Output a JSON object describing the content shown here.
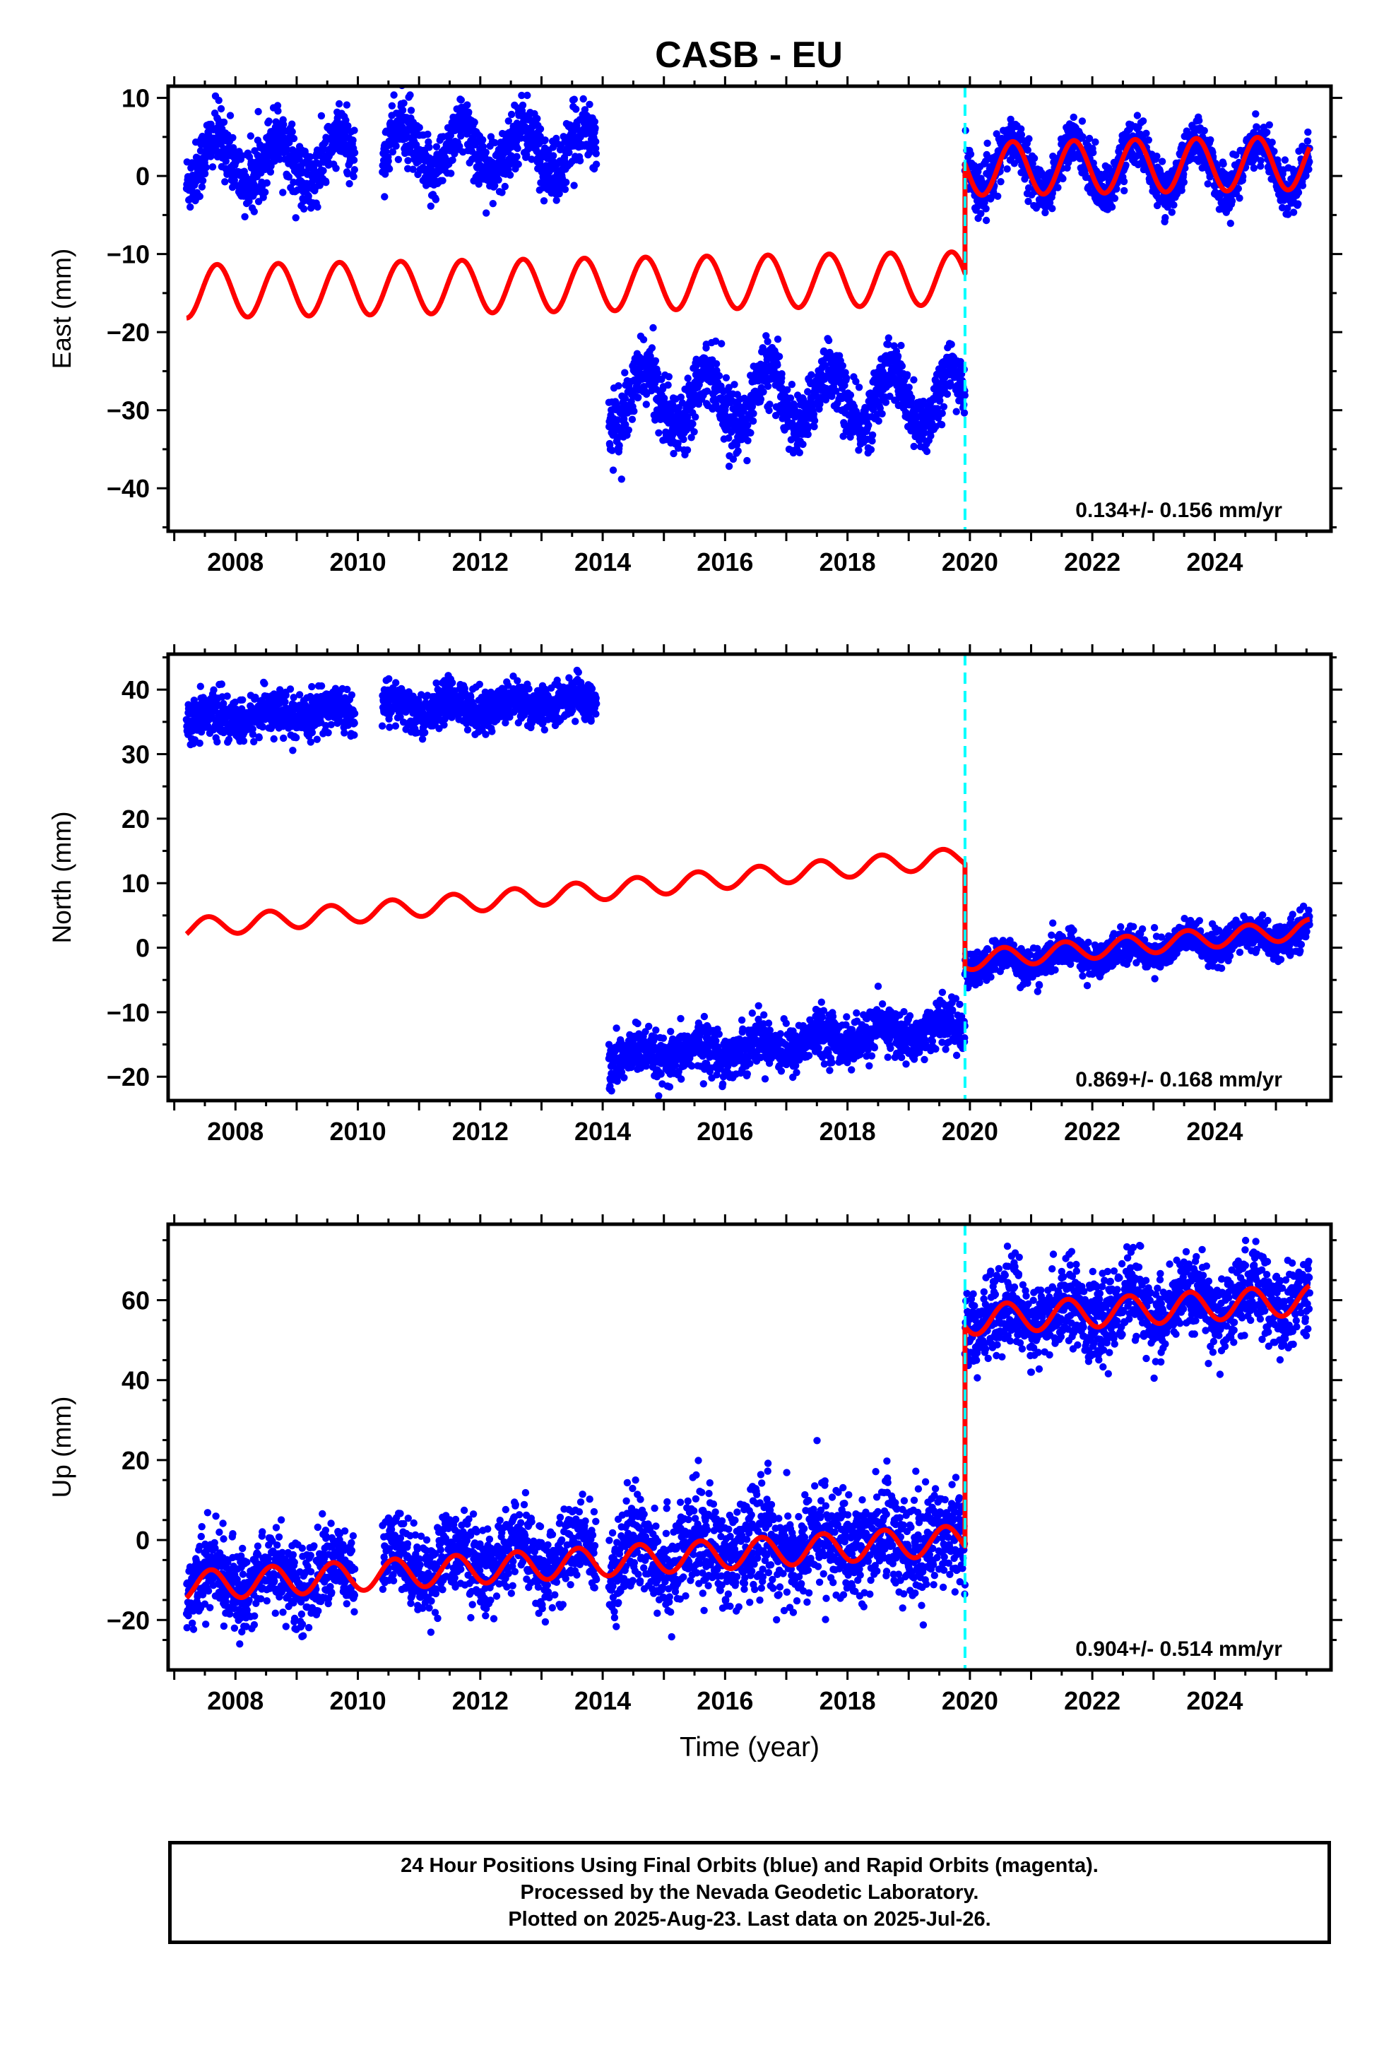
{
  "title": "CASB - EU",
  "colors": {
    "data": "#0000ff",
    "model": "#ff0000",
    "event_line": "#00ffff",
    "frame": "#000000"
  },
  "chart_data": [
    {
      "type": "scatter",
      "name": "east",
      "ylabel": "East (mm)",
      "xlabel": "",
      "xlim": [
        2006.9,
        2025.9
      ],
      "ylim": [
        -45.5,
        11.5
      ],
      "xticks": [
        "2008",
        "2010",
        "2012",
        "2014",
        "2016",
        "2018",
        "2020",
        "2022",
        "2024"
      ],
      "yticks": [
        "10",
        "0",
        "−10",
        "−20",
        "−30",
        "−40"
      ],
      "ytick_values": [
        10,
        0,
        -10,
        -20,
        -30,
        -40
      ],
      "annotation": "0.134+/- 0.156 mm/yr",
      "event_line_x": 2019.92,
      "data_segments": [
        {
          "x_range": [
            2007.2,
            2009.95
          ],
          "center": 2.0,
          "amplitude": 3.0,
          "noise": 2.0,
          "phase": 2007.45
        },
        {
          "x_range": [
            2010.4,
            2013.9
          ],
          "center": 3.3,
          "amplitude": 3.0,
          "noise": 2.0,
          "phase": 2007.45
        },
        {
          "x_range": [
            2014.1,
            2019.92
          ],
          "center": -28.5,
          "amplitude": 3.6,
          "noise": 2.0,
          "phase": 2007.45
        },
        {
          "x_range": [
            2019.92,
            2025.55
          ],
          "center": 1.3,
          "amplitude": 3.3,
          "noise": 1.5,
          "phase": 2007.45
        }
      ],
      "model_segments": [
        {
          "x_range": [
            2007.2,
            2019.92
          ],
          "start": -14.8,
          "slope": 0.134,
          "amplitude": 3.4,
          "phase": 2007.45
        },
        {
          "x_range": [
            2019.92,
            2025.55
          ],
          "start": 0.9,
          "slope": 0.134,
          "amplitude": 3.4,
          "phase": 2007.45
        }
      ]
    },
    {
      "type": "scatter",
      "name": "north",
      "ylabel": "North (mm)",
      "xlabel": "",
      "xlim": [
        2006.9,
        2025.9
      ],
      "ylim": [
        -23.7,
        45.5
      ],
      "xticks": [
        "2008",
        "2010",
        "2012",
        "2014",
        "2016",
        "2018",
        "2020",
        "2022",
        "2024"
      ],
      "yticks": [
        "40",
        "30",
        "20",
        "10",
        "0",
        "−10",
        "−20"
      ],
      "ytick_values": [
        40,
        30,
        20,
        10,
        0,
        -10,
        -20
      ],
      "annotation": "0.869+/- 0.168 mm/yr",
      "event_line_x": 2019.92,
      "data_segments": [
        {
          "x_range": [
            2007.2,
            2009.95
          ],
          "center": 35.3,
          "slope": 0.5,
          "amplitude": 1.0,
          "noise": 1.6,
          "phase": 2007.3
        },
        {
          "x_range": [
            2010.4,
            2013.9
          ],
          "center": 37.0,
          "slope": 0.3,
          "amplitude": 1.0,
          "noise": 1.6,
          "phase": 2007.3
        },
        {
          "x_range": [
            2014.1,
            2019.92
          ],
          "center": -17.5,
          "slope": 0.9,
          "amplitude": 1.2,
          "noise": 1.8,
          "phase": 2007.3
        },
        {
          "x_range": [
            2019.92,
            2025.55
          ],
          "center": -2.8,
          "slope": 0.9,
          "amplitude": 1.2,
          "noise": 1.3,
          "phase": 2007.3
        }
      ],
      "model_segments": [
        {
          "x_range": [
            2007.2,
            2019.92
          ],
          "start": 3.0,
          "slope": 0.869,
          "amplitude": 1.5,
          "phase": 2007.3
        },
        {
          "x_range": [
            2019.92,
            2025.55
          ],
          "start": -2.0,
          "slope": 0.869,
          "amplitude": 1.5,
          "phase": 2007.3
        }
      ]
    },
    {
      "type": "scatter",
      "name": "up",
      "ylabel": "Up (mm)",
      "xlabel": "Time (year)",
      "xlim": [
        2006.9,
        2025.9
      ],
      "ylim": [
        -32.5,
        79.0
      ],
      "xticks": [
        "2008",
        "2010",
        "2012",
        "2014",
        "2016",
        "2018",
        "2020",
        "2022",
        "2024"
      ],
      "yticks": [
        "60",
        "40",
        "20",
        "0",
        "−20"
      ],
      "ytick_values": [
        60,
        40,
        20,
        0,
        -20
      ],
      "annotation": "0.904+/- 0.514 mm/yr",
      "event_line_x": 2019.92,
      "data_segments": [
        {
          "x_range": [
            2007.2,
            2009.95
          ],
          "center": -10.5,
          "slope": 0.7,
          "amplitude": 3.5,
          "noise": 5.0,
          "phase": 2007.35
        },
        {
          "x_range": [
            2010.4,
            2013.9
          ],
          "center": -6.0,
          "slope": 0.7,
          "amplitude": 3.5,
          "noise": 5.0,
          "phase": 2007.35
        },
        {
          "x_range": [
            2014.1,
            2019.92
          ],
          "center": -4.0,
          "slope": 0.8,
          "amplitude": 3.5,
          "noise": 6.5,
          "phase": 2007.35
        },
        {
          "x_range": [
            2019.92,
            2025.55
          ],
          "center": 55.5,
          "slope": 0.9,
          "amplitude": 3.8,
          "noise": 5.0,
          "phase": 2007.35
        }
      ],
      "model_segments": [
        {
          "x_range": [
            2007.2,
            2019.92
          ],
          "start": -11.5,
          "slope": 0.904,
          "amplitude": 3.7,
          "phase": 2007.35
        },
        {
          "x_range": [
            2019.92,
            2025.55
          ],
          "start": 55.0,
          "slope": 0.904,
          "amplitude": 3.7,
          "phase": 2007.35
        }
      ]
    }
  ],
  "footer": {
    "line1": "24 Hour Positions Using Final Orbits (blue) and Rapid Orbits (magenta).",
    "line2": "Processed by the Nevada Geodetic Laboratory.",
    "line3": "Plotted on 2025-Aug-23. Last data on 2025-Jul-26."
  }
}
